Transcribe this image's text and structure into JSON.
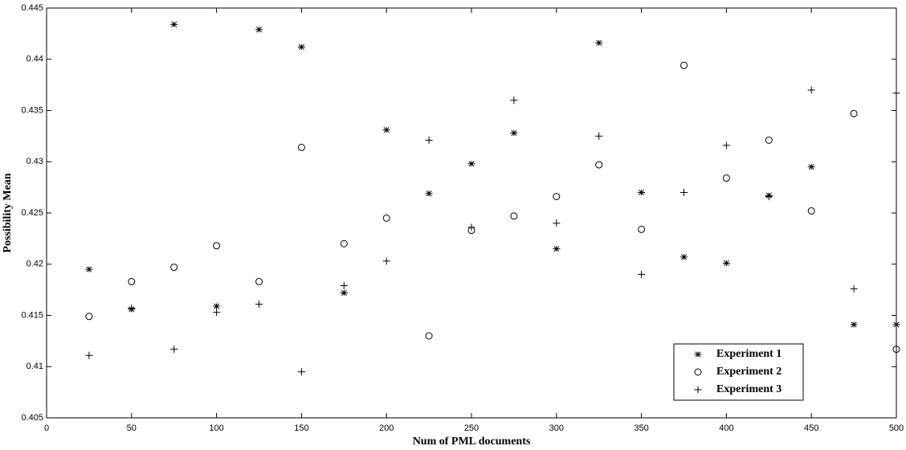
{
  "chart_data": {
    "type": "scatter",
    "x_label": "Num of PML documents",
    "y_label": "Possibility Mean",
    "x": [
      25,
      50,
      75,
      100,
      125,
      150,
      175,
      200,
      225,
      250,
      275,
      300,
      325,
      350,
      375,
      400,
      425,
      450,
      475,
      500
    ],
    "series": [
      {
        "name": "Experiment 1",
        "marker": "star",
        "color": "#000000",
        "values": [
          0.4195,
          0.4156,
          0.4434,
          0.4159,
          0.4429,
          0.4412,
          0.4172,
          0.4331,
          0.4269,
          0.4298,
          0.4328,
          0.4215,
          0.4416,
          0.427,
          0.4207,
          0.4201,
          0.4267,
          0.4295,
          0.4141,
          0.4141
        ]
      },
      {
        "name": "Experiment 2",
        "marker": "circle",
        "color": "#000000",
        "values": [
          0.4149,
          0.4183,
          0.4197,
          0.4218,
          0.4183,
          0.4314,
          0.422,
          0.4245,
          0.413,
          0.4233,
          0.4247,
          0.4266,
          0.4297,
          0.4234,
          0.4394,
          0.4284,
          0.4321,
          0.4252,
          0.4347,
          0.4117
        ]
      },
      {
        "name": "Experiment 3",
        "marker": "plus",
        "color": "#000000",
        "values": [
          0.4111,
          0.4157,
          0.4117,
          0.4153,
          0.4161,
          0.4095,
          0.4179,
          0.4203,
          0.4321,
          0.4236,
          0.436,
          0.424,
          0.4325,
          0.419,
          0.427,
          0.4316,
          0.4266,
          0.437,
          0.4176,
          0.4367
        ]
      }
    ],
    "xlim": [
      0,
      500
    ],
    "xticks": [
      0,
      50,
      100,
      150,
      200,
      250,
      300,
      350,
      400,
      450,
      500
    ],
    "ylim": [
      0.405,
      0.445
    ],
    "yticks": [
      0.405,
      0.41,
      0.415,
      0.42,
      0.425,
      0.43,
      0.435,
      0.44,
      0.445
    ],
    "grid": false,
    "legend": "lower right"
  }
}
